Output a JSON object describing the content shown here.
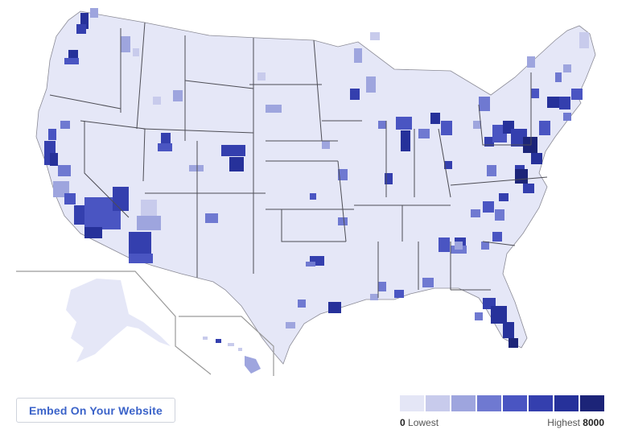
{
  "map": {
    "fill_us": "#e5e7f7",
    "border_color": "#4d4d55",
    "inset_line_color": "#9a9a9a",
    "scale_colors": [
      "#e4e6f6",
      "#c8cbec",
      "#9ea5de",
      "#6f79d1",
      "#4a55c2",
      "#343fae",
      "#26319a",
      "#1c2478"
    ]
  },
  "embed": {
    "label": "Embed On Your Website"
  },
  "legend": {
    "low_value": "0",
    "low_label": "Lowest",
    "high_label": "Highest",
    "high_value": "8000"
  }
}
